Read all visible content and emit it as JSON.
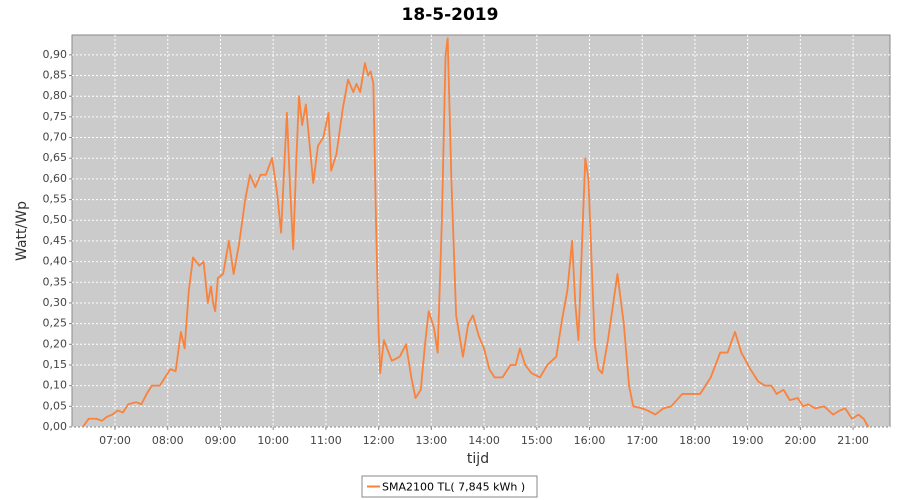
{
  "chart_data": {
    "type": "line",
    "title": "18-5-2019",
    "xlabel": "tijd",
    "ylabel": "Watt/Wp",
    "x": [
      6.39,
      6.5,
      6.65,
      6.75,
      6.85,
      6.95,
      7.05,
      7.15,
      7.25,
      7.4,
      7.5,
      7.6,
      7.7,
      7.85,
      7.95,
      8.05,
      8.15,
      8.25,
      8.32,
      8.4,
      8.48,
      8.6,
      8.68,
      8.76,
      8.82,
      8.86,
      8.9,
      8.95,
      9.05,
      9.16,
      9.25,
      9.35,
      9.47,
      9.56,
      9.66,
      9.76,
      9.86,
      9.98,
      10.08,
      10.15,
      10.26,
      10.32,
      10.38,
      10.44,
      10.49,
      10.55,
      10.62,
      10.76,
      10.85,
      10.95,
      11.05,
      11.1,
      11.2,
      11.32,
      11.42,
      11.52,
      11.58,
      11.65,
      11.74,
      11.8,
      11.85,
      11.9,
      11.95,
      12.0,
      12.03,
      12.1,
      12.25,
      12.4,
      12.52,
      12.62,
      12.7,
      12.8,
      12.88,
      12.95,
      13.05,
      13.12,
      13.2,
      13.27,
      13.31,
      13.38,
      13.47,
      13.6,
      13.7,
      13.79,
      13.9,
      14.0,
      14.1,
      14.2,
      14.35,
      14.5,
      14.6,
      14.68,
      14.78,
      14.9,
      15.06,
      15.2,
      15.37,
      15.48,
      15.58,
      15.67,
      15.73,
      15.79,
      15.86,
      15.92,
      15.98,
      16.1,
      16.17,
      16.24,
      16.35,
      16.53,
      16.65,
      16.75,
      16.83,
      17.0,
      17.1,
      17.25,
      17.4,
      17.55,
      17.76,
      18.1,
      18.3,
      18.48,
      18.62,
      18.76,
      18.88,
      19.05,
      19.2,
      19.33,
      19.45,
      19.55,
      19.68,
      19.8,
      19.95,
      20.05,
      20.15,
      20.28,
      20.45,
      20.62,
      20.75,
      20.85,
      20.98,
      21.1,
      21.2,
      21.29
    ],
    "series": [
      {
        "name": "SMA2100 TL( 7,845 kWh )",
        "color": "#f9823c",
        "values": [
          0,
          0.02,
          0.02,
          0.015,
          0.025,
          0.03,
          0.04,
          0.035,
          0.055,
          0.06,
          0.055,
          0.08,
          0.1,
          0.1,
          0.12,
          0.14,
          0.135,
          0.23,
          0.19,
          0.33,
          0.41,
          0.39,
          0.4,
          0.3,
          0.34,
          0.3,
          0.28,
          0.36,
          0.37,
          0.45,
          0.37,
          0.44,
          0.55,
          0.61,
          0.58,
          0.61,
          0.61,
          0.65,
          0.56,
          0.47,
          0.76,
          0.58,
          0.43,
          0.65,
          0.8,
          0.73,
          0.78,
          0.59,
          0.68,
          0.7,
          0.76,
          0.62,
          0.66,
          0.77,
          0.84,
          0.81,
          0.83,
          0.81,
          0.88,
          0.85,
          0.86,
          0.83,
          0.5,
          0.23,
          0.13,
          0.21,
          0.16,
          0.17,
          0.2,
          0.12,
          0.07,
          0.09,
          0.2,
          0.28,
          0.24,
          0.18,
          0.5,
          0.9,
          0.94,
          0.6,
          0.27,
          0.17,
          0.25,
          0.27,
          0.22,
          0.19,
          0.14,
          0.12,
          0.12,
          0.15,
          0.15,
          0.19,
          0.15,
          0.13,
          0.12,
          0.15,
          0.17,
          0.26,
          0.33,
          0.45,
          0.3,
          0.21,
          0.45,
          0.65,
          0.6,
          0.2,
          0.14,
          0.13,
          0.21,
          0.37,
          0.25,
          0.1,
          0.05,
          0.045,
          0.04,
          0.03,
          0.045,
          0.05,
          0.08,
          0.08,
          0.12,
          0.18,
          0.18,
          0.23,
          0.18,
          0.14,
          0.11,
          0.1,
          0.1,
          0.08,
          0.09,
          0.065,
          0.07,
          0.05,
          0.055,
          0.045,
          0.05,
          0.03,
          0.04,
          0.045,
          0.02,
          0.03,
          0.02,
          0
        ]
      }
    ],
    "xlim": [
      6.184,
      21.7
    ],
    "xticks": [
      {
        "value": 7,
        "label": "07:00"
      },
      {
        "value": 8,
        "label": "08:00"
      },
      {
        "value": 9,
        "label": "09:00"
      },
      {
        "value": 10,
        "label": "10:00"
      },
      {
        "value": 11,
        "label": "11:00"
      },
      {
        "value": 12,
        "label": "12:00"
      },
      {
        "value": 13,
        "label": "13:00"
      },
      {
        "value": 14,
        "label": "14:00"
      },
      {
        "value": 15,
        "label": "15:00"
      },
      {
        "value": 16,
        "label": "16:00"
      },
      {
        "value": 17,
        "label": "17:00"
      },
      {
        "value": 18,
        "label": "18:00"
      },
      {
        "value": 19,
        "label": "19:00"
      },
      {
        "value": 20,
        "label": "20:00"
      },
      {
        "value": 21,
        "label": "21:00"
      }
    ],
    "ylim": [
      0,
      0.948
    ],
    "yticks": [
      {
        "value": 0,
        "label": "0,00"
      },
      {
        "value": 0.05,
        "label": "0,05"
      },
      {
        "value": 0.1,
        "label": "0,10"
      },
      {
        "value": 0.15,
        "label": "0,15"
      },
      {
        "value": 0.2,
        "label": "0,20"
      },
      {
        "value": 0.25,
        "label": "0,25"
      },
      {
        "value": 0.3,
        "label": "0,30"
      },
      {
        "value": 0.35,
        "label": "0,35"
      },
      {
        "value": 0.4,
        "label": "0,40"
      },
      {
        "value": 0.45,
        "label": "0,45"
      },
      {
        "value": 0.5,
        "label": "0,50"
      },
      {
        "value": 0.55,
        "label": "0,55"
      },
      {
        "value": 0.6,
        "label": "0,60"
      },
      {
        "value": 0.65,
        "label": "0,65"
      },
      {
        "value": 0.7,
        "label": "0,70"
      },
      {
        "value": 0.75,
        "label": "0,75"
      },
      {
        "value": 0.8,
        "label": "0,80"
      },
      {
        "value": 0.85,
        "label": "0,85"
      },
      {
        "value": 0.9,
        "label": "0,90"
      }
    ],
    "grid": true,
    "legend": "bottom"
  }
}
